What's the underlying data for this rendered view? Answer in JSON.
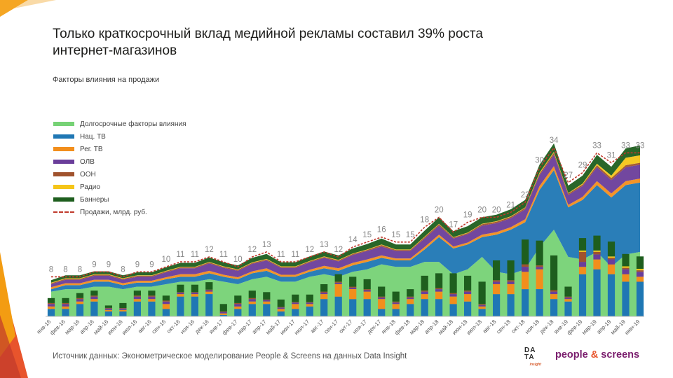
{
  "title": "Только краткосрочный вклад медийной рекламы составил 39% роста интернет-магазинов",
  "subtitle": "Факторы влияния на продажи",
  "source": "Источник данных: Эконометрическое моделирование People & Screens на данных Data Insight",
  "logos": {
    "data_insight_top": "DA",
    "data_insight_bottom": "TA",
    "data_insight_sub": "insight",
    "people": "people",
    "amp": "&",
    "screens": "screens"
  },
  "legend": [
    {
      "name": "Долгосрочные факторы влияния",
      "color": "#76d275"
    },
    {
      "name": "Нац. ТВ",
      "color": "#1f77b4"
    },
    {
      "name": "Рег. ТВ",
      "color": "#f28e1c"
    },
    {
      "name": "ОЛВ",
      "color": "#6a3d9a"
    },
    {
      "name": "ООН",
      "color": "#a0522d"
    },
    {
      "name": "Радио",
      "color": "#f5c518"
    },
    {
      "name": "Баннеры",
      "color": "#1e5e1e"
    },
    {
      "name": "Продажи, млрд. руб.",
      "color": "#c0392b"
    }
  ],
  "chart_data": {
    "type": "area",
    "title": "Факторы влияния на продажи",
    "xlabel": "",
    "ylabel": "",
    "ylim": [
      0,
      37
    ],
    "categories": [
      "янв-16",
      "фев-16",
      "мар-16",
      "апр-16",
      "май-16",
      "июн-16",
      "июл-16",
      "авг-16",
      "сен-16",
      "окт-16",
      "ноя-16",
      "дек-16",
      "янв-17",
      "фев-17",
      "мар-17",
      "апр-17",
      "май-17",
      "июн-17",
      "июл-17",
      "авг-17",
      "сен-17",
      "окт-17",
      "ноя-17",
      "дек-17",
      "янв-18",
      "фев-18",
      "мар-18",
      "апр-18",
      "май-18",
      "июн-18",
      "июл-18",
      "авг-18",
      "сен-18",
      "окт-18",
      "ноя-18",
      "дек-18",
      "янв-19",
      "фев-19",
      "мар-19",
      "апр-19",
      "май-19",
      "июн-19"
    ],
    "sales_labels": [
      8,
      8,
      8,
      9,
      9,
      8,
      9,
      9,
      10,
      11,
      11,
      12,
      11,
      10,
      12,
      13,
      11,
      11,
      12,
      13,
      12,
      14,
      15,
      16,
      15,
      15,
      18,
      20,
      17,
      19,
      20,
      20,
      21,
      23,
      30,
      34,
      27,
      29,
      33,
      31,
      33,
      33
    ],
    "series": [
      {
        "name": "Долгосрочные факторы влияния",
        "color": "#76d275",
        "values": [
          5,
          5.5,
          5.5,
          6,
          6,
          5.5,
          6,
          6,
          6.5,
          7,
          7,
          7.5,
          7,
          6.5,
          7.5,
          8,
          7,
          7,
          8,
          8.5,
          8,
          9,
          9.5,
          10.5,
          10,
          10,
          11,
          11,
          8.5,
          9.5,
          12,
          9,
          8.5,
          9.5,
          14,
          17.5,
          12,
          11.5,
          13,
          10,
          12.5,
          13
        ]
      },
      {
        "name": "Нац. ТВ",
        "color": "#1f77b4",
        "values": [
          0.5,
          0.8,
          0.8,
          1,
          1,
          0.8,
          0.8,
          0.8,
          1,
          1,
          1,
          1.2,
          1,
          1,
          1.2,
          1.2,
          1,
          1,
          1,
          1.2,
          1.2,
          1.3,
          1.5,
          1.3,
          1.3,
          1.3,
          2.5,
          5,
          5.2,
          5,
          4,
          7.5,
          9,
          9.5,
          11.5,
          12,
          10,
          12,
          13.5,
          14,
          14,
          14
        ]
      },
      {
        "name": "Рег. ТВ",
        "color": "#f28e1c",
        "values": [
          0.4,
          0.4,
          0.4,
          0.4,
          0.4,
          0.4,
          0.4,
          0.4,
          0.4,
          0.5,
          0.5,
          0.5,
          0.4,
          0.4,
          0.4,
          0.5,
          0.4,
          0.4,
          0.4,
          0.5,
          0.5,
          0.5,
          0.5,
          0.5,
          0.4,
          0.4,
          0.5,
          0.5,
          0.4,
          0.4,
          0.5,
          0.5,
          0.5,
          0.6,
          0.8,
          0.8,
          0.5,
          0.6,
          0.8,
          0.8,
          0.8,
          0.8
        ]
      },
      {
        "name": "ОЛВ",
        "color": "#6a3d9a",
        "values": [
          0.6,
          0.7,
          0.7,
          0.8,
          0.8,
          0.7,
          0.8,
          0.8,
          1,
          1.2,
          1.2,
          1.5,
          1.4,
          1.3,
          1.5,
          1.6,
          1.4,
          1.4,
          1.5,
          1.6,
          1.4,
          1.6,
          1.7,
          1.8,
          1.5,
          1.5,
          1.7,
          1.8,
          1.6,
          1.7,
          1.8,
          1.8,
          1.8,
          2,
          2.2,
          2.3,
          2,
          2.2,
          2.8,
          2.7,
          2.8,
          2.8
        ]
      },
      {
        "name": "ООН",
        "color": "#a0522d",
        "values": [
          0.2,
          0.2,
          0.2,
          0.2,
          0.2,
          0.2,
          0.2,
          0.2,
          0.2,
          0.2,
          0.2,
          0.2,
          0.2,
          0.2,
          0.2,
          0.2,
          0.2,
          0.2,
          0.2,
          0.2,
          0.2,
          0.2,
          0.2,
          0.3,
          0.2,
          0.2,
          0.3,
          0.3,
          0.2,
          0.2,
          0.3,
          0.3,
          0.3,
          0.3,
          0.3,
          0.4,
          0.3,
          0.3,
          0.4,
          0.4,
          0.4,
          0.4
        ]
      },
      {
        "name": "Радио",
        "color": "#f5c518",
        "values": [
          0.1,
          0.1,
          0.1,
          0.1,
          0.1,
          0.1,
          0.1,
          0.1,
          0.1,
          0.1,
          0.1,
          0.1,
          0.1,
          0.1,
          0.1,
          0.1,
          0.1,
          0.1,
          0.1,
          0.1,
          0.1,
          0.1,
          0.1,
          0.1,
          0.1,
          0.1,
          0.1,
          0.1,
          0.1,
          0.1,
          0.1,
          0.1,
          0.1,
          0.1,
          0.2,
          0.2,
          0.1,
          0.2,
          0.3,
          0.5,
          1.5,
          1.5
        ]
      },
      {
        "name": "Баннеры",
        "color": "#1e5e1e",
        "values": [
          0.5,
          0.6,
          0.6,
          0.6,
          0.6,
          0.6,
          0.6,
          0.6,
          0.7,
          0.8,
          0.8,
          0.9,
          0.8,
          0.8,
          0.9,
          1,
          0.8,
          0.8,
          0.9,
          1,
          0.9,
          1,
          1.1,
          1.2,
          1,
          1,
          1.2,
          1.3,
          1.2,
          1.3,
          1.3,
          1.3,
          1.4,
          1.5,
          1.6,
          1.7,
          1.5,
          1.6,
          1.8,
          1.8,
          1.9,
          2
        ]
      }
    ],
    "bars": [
      {
        "name": "Нац. ТВ",
        "color": "#1f77b4",
        "values": [
          1.5,
          1.5,
          2.5,
          3,
          1,
          1,
          3,
          3,
          1.5,
          4,
          4,
          4.5,
          0.3,
          1.5,
          2.5,
          2.5,
          1,
          1.5,
          2,
          3.5,
          4,
          3.5,
          3.5,
          1.5,
          1.5,
          2.5,
          3.5,
          3.5,
          2.5,
          3,
          1.5,
          4.5,
          4.5,
          5.5,
          5.5,
          3.5,
          3,
          8.5,
          9.5,
          8.5,
          7,
          7
        ]
      },
      {
        "name": "Рег. ТВ",
        "color": "#f28e1c",
        "values": [
          0.5,
          0.5,
          0.5,
          0.5,
          0.3,
          0.3,
          0.5,
          0.5,
          1,
          0.5,
          0.5,
          0.5,
          0.3,
          0.5,
          0.5,
          0.5,
          0.5,
          1,
          0.5,
          1,
          2.5,
          2,
          1.5,
          2,
          1,
          1,
          1,
          1.5,
          1.5,
          1.5,
          0.5,
          2,
          2,
          3.5,
          4,
          1,
          0.5,
          1.5,
          2,
          2,
          1.5,
          1
        ]
      },
      {
        "name": "ОЛВ",
        "color": "#6a3d9a",
        "values": [
          0.5,
          0.5,
          0.5,
          0.5,
          0.3,
          0.3,
          0.5,
          0.5,
          0.5,
          0.3,
          0.3,
          0.3,
          0.3,
          0.5,
          0.5,
          0.3,
          0.3,
          0.3,
          0.3,
          0.3,
          0.3,
          0.3,
          0.3,
          0.3,
          0.3,
          0.3,
          0.5,
          0.5,
          0.5,
          0.5,
          0.3,
          0.5,
          0.5,
          1,
          0.5,
          0.5,
          0.3,
          1,
          1,
          1,
          1,
          1
        ]
      },
      {
        "name": "ООН",
        "color": "#a0522d",
        "values": [
          0.2,
          0.2,
          0.2,
          0.2,
          0.1,
          0.1,
          0.2,
          0.2,
          0.2,
          0.1,
          0.1,
          0.1,
          0.1,
          0.2,
          0.2,
          0.1,
          0.1,
          0.1,
          0.1,
          0.2,
          0.2,
          0.2,
          0.2,
          0.2,
          0.2,
          0.2,
          0.2,
          0.2,
          0.2,
          0.2,
          0.2,
          0.3,
          0.3,
          0.5,
          0.3,
          0.3,
          0.2,
          2,
          0.5,
          0.3,
          0.3,
          0.3
        ]
      },
      {
        "name": "Радио",
        "color": "#f5c518",
        "values": [
          0,
          0,
          0,
          0,
          0,
          0,
          0,
          0,
          0,
          0,
          0,
          0,
          0,
          0,
          0,
          0,
          0,
          0,
          0,
          0,
          0,
          0,
          0,
          0,
          0,
          0,
          0,
          0,
          0,
          0,
          0,
          0,
          0,
          0,
          0,
          0,
          0,
          0.3,
          0.3,
          0.3,
          0.3,
          0.3
        ]
      },
      {
        "name": "Баннеры",
        "color": "#1e5e1e",
        "values": [
          1,
          1,
          1,
          1,
          0.5,
          1,
          1,
          1,
          1,
          1.5,
          1.5,
          1.5,
          1.5,
          1.5,
          1.5,
          1.5,
          1.5,
          1.5,
          1.5,
          1.5,
          1.5,
          2,
          2,
          2,
          2,
          1.5,
          3,
          3,
          4,
          3,
          4.5,
          4,
          4,
          5,
          5,
          7,
          2,
          2.5,
          3,
          3,
          2.5,
          2.5
        ]
      }
    ]
  },
  "colors": {
    "sales_line": "#c0392b",
    "label": "#888888",
    "axis": "#bbbbbb",
    "corner_dark": "#e8542c",
    "corner_light": "#f39c12"
  }
}
